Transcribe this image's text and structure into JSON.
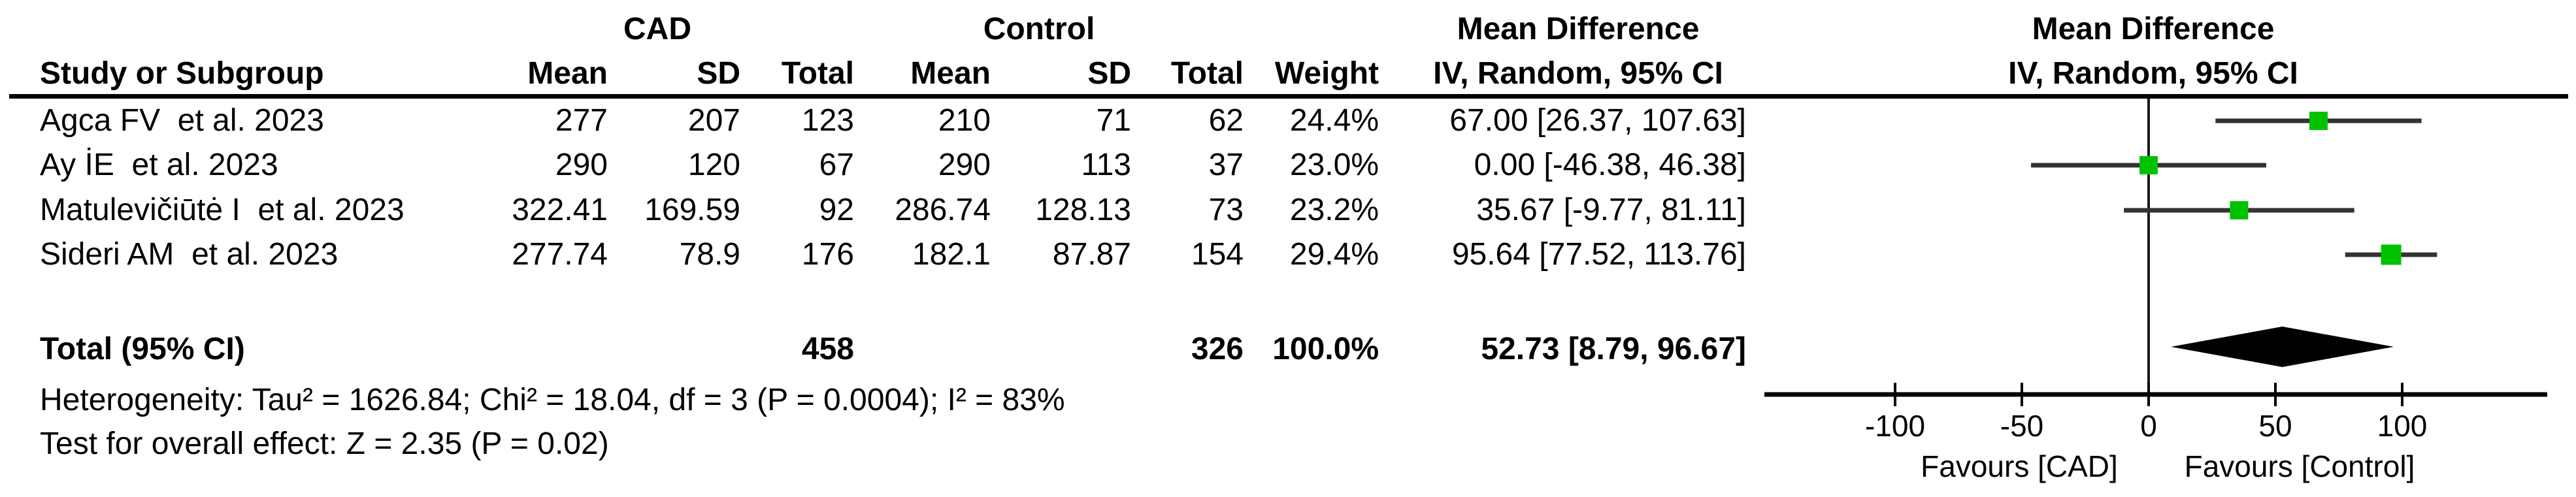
{
  "table": {
    "group_headers": {
      "cad": "CAD",
      "control": "Control"
    },
    "col_headers": {
      "study": "Study or Subgroup",
      "cad_mean": "Mean",
      "cad_sd": "SD",
      "cad_total": "Total",
      "control_mean": "Mean",
      "control_sd": "SD",
      "control_total": "Total",
      "weight": "Weight",
      "stat_title": "Mean Difference",
      "stat_subtitle": "IV, Random, 95% CI"
    },
    "plot_headers": {
      "title": "Mean Difference",
      "subtitle": "IV, Random, 95% CI"
    },
    "rows": [
      {
        "study": "Agca FV  et al. 2023",
        "mean1": "277",
        "sd1": "207",
        "total1": "123",
        "mean2": "210",
        "sd2": "71",
        "total2": "62",
        "weight": "24.4%",
        "ci": "67.00 [26.37, 107.63]"
      },
      {
        "study": "Ay İE  et al. 2023",
        "mean1": "290",
        "sd1": "120",
        "total1": "67",
        "mean2": "290",
        "sd2": "113",
        "total2": "37",
        "weight": "23.0%",
        "ci": "0.00 [-46.38, 46.38]"
      },
      {
        "study": "Matulevičiūtė I  et al. 2023",
        "mean1": "322.41",
        "sd1": "169.59",
        "total1": "92",
        "mean2": "286.74",
        "sd2": "128.13",
        "total2": "73",
        "weight": "23.2%",
        "ci": "35.67 [-9.77, 81.11]"
      },
      {
        "study": "Sideri AM  et al. 2023",
        "mean1": "277.74",
        "sd1": "78.9",
        "total1": "176",
        "mean2": "182.1",
        "sd2": "87.87",
        "total2": "154",
        "weight": "29.4%",
        "ci": "95.64 [77.52, 113.76]"
      }
    ],
    "total_row": {
      "label": "Total (95% CI)",
      "total1": "458",
      "total2": "326",
      "weight": "100.0%",
      "ci": "52.73 [8.79, 96.67]"
    },
    "heterogeneity": "Heterogeneity: Tau² = 1626.84; Chi² = 18.04, df = 3 (P = 0.0004); I² = 83%",
    "overall_effect": "Test for overall effect: Z = 2.35 (P = 0.02)"
  },
  "chart_data": {
    "type": "forest",
    "effect_measure": "Mean Difference",
    "model": "IV, Random, 95% CI",
    "studies": [
      {
        "name": "Agca FV et al. 2023",
        "md": 67.0,
        "ci_low": 26.37,
        "ci_high": 107.63,
        "weight_pct": 24.4
      },
      {
        "name": "Ay İE et al. 2023",
        "md": 0.0,
        "ci_low": -46.38,
        "ci_high": 46.38,
        "weight_pct": 23.0
      },
      {
        "name": "Matulevičiūtė I et al. 2023",
        "md": 35.67,
        "ci_low": -9.77,
        "ci_high": 81.11,
        "weight_pct": 23.2
      },
      {
        "name": "Sideri AM et al. 2023",
        "md": 95.64,
        "ci_low": 77.52,
        "ci_high": 113.76,
        "weight_pct": 29.4
      }
    ],
    "total": {
      "md": 52.73,
      "ci_low": 8.79,
      "ci_high": 96.67
    },
    "axis": {
      "ticks": [
        -100,
        -50,
        0,
        50,
        100
      ],
      "xlim": [
        -151,
        157
      ],
      "favours_left": "Favours [CAD]",
      "favours_right": "Favours [Control]"
    },
    "colors": {
      "square": "#00C300",
      "diamond": "#000000",
      "ci_line": "#333333",
      "axis": "#1a1a1a"
    }
  }
}
